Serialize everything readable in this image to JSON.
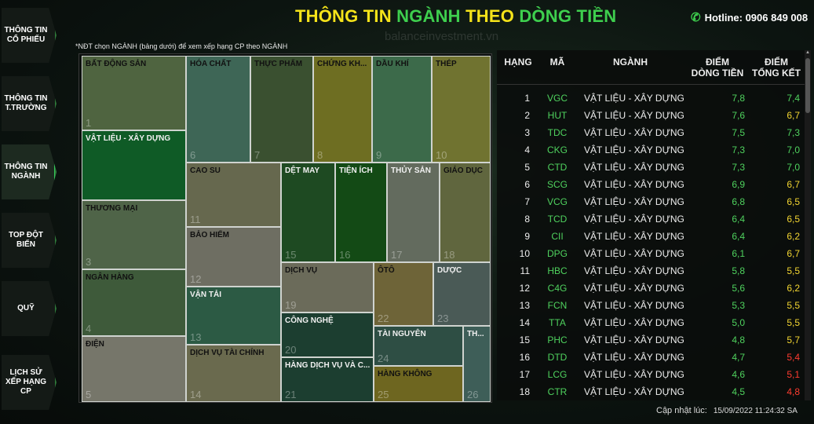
{
  "sidebar": {
    "items": [
      {
        "label": "THÔNG TIN CỔ PHIẾU"
      },
      {
        "label": "THÔNG TIN T.TRƯỜNG"
      },
      {
        "label": "THÔNG TIN NGÀNH"
      },
      {
        "label": "TOP ĐỘT BIẾN"
      },
      {
        "label": "QUỸ"
      },
      {
        "label": "LỊCH SỬ XẾP HẠNG CP"
      }
    ]
  },
  "header": {
    "title_p1": "THÔNG TIN ",
    "title_p2": "NGÀNH",
    "title_p3": " THEO ",
    "title_p4": "DÒNG TIỀN",
    "hotline": "Hotline: 0906 849 008",
    "watermark": "balanceinvestment.vn",
    "note": "*NĐT chọn NGÀNH (bảng dưới) để xem xếp hạng CP theo NGÀNH"
  },
  "treemap": {
    "tiles": [
      {
        "label": "BẤT ĐỘNG SẢN",
        "num": "1",
        "color": "#4f6440"
      },
      {
        "label": "VẬT LIỆU - XÂY DỰNG",
        "num": "",
        "color": "#0f5b26"
      },
      {
        "label": "THƯƠNG MẠI",
        "num": "3",
        "color": "#4f6448"
      },
      {
        "label": "NGÂN HÀNG",
        "num": "4",
        "color": "#3e5a3a"
      },
      {
        "label": "ĐIỆN",
        "num": "5",
        "color": "#76766a"
      },
      {
        "label": "HÓA CHẤT",
        "num": "6",
        "color": "#3e6656"
      },
      {
        "label": "THỰC PHẨM",
        "num": "7",
        "color": "#3a5030"
      },
      {
        "label": "CHỨNG KH...",
        "num": "8",
        "color": "#6e6e22"
      },
      {
        "label": "DẦU KHÍ",
        "num": "9",
        "color": "#3c6a4a"
      },
      {
        "label": "THÉP",
        "num": "10",
        "color": "#707330"
      },
      {
        "label": "CAO SU",
        "num": "11",
        "color": "#66684e"
      },
      {
        "label": "BẢO HIỂM",
        "num": "12",
        "color": "#6e6e62"
      },
      {
        "label": "VẬN TẢI",
        "num": "13",
        "color": "#2c5a44"
      },
      {
        "label": "DỊCH VỤ TÀI CHÍNH",
        "num": "14",
        "color": "#6a6a4e"
      },
      {
        "label": "DỆT MAY",
        "num": "15",
        "color": "#1e4a22"
      },
      {
        "label": "TIỆN ÍCH",
        "num": "16",
        "color": "#134a15"
      },
      {
        "label": "THỦY SẢN",
        "num": "17",
        "color": "#636b5e"
      },
      {
        "label": "GIÁO DỤC",
        "num": "18",
        "color": "#60663e"
      },
      {
        "label": "DỊCH VỤ",
        "num": "19",
        "color": "#6b6b5a"
      },
      {
        "label": "CÔNG NGHỆ",
        "num": "20",
        "color": "#1c3e30"
      },
      {
        "label": "HÀNG DỊCH VỤ VÀ C...",
        "num": "21",
        "color": "#1c3e30"
      },
      {
        "label": "ÔTÔ",
        "num": "22",
        "color": "#6e6438"
      },
      {
        "label": "DƯỢC",
        "num": "23",
        "color": "#4a5a56"
      },
      {
        "label": "TÀI NGUYÊN",
        "num": "24",
        "color": "#2e4e44"
      },
      {
        "label": "HÀNG KHÔNG",
        "num": "25",
        "color": "#6e6620"
      },
      {
        "label": "TH...",
        "num": "26",
        "color": "#3e5e58"
      }
    ]
  },
  "table": {
    "headers": {
      "rank": "HẠNG",
      "code": "MÃ",
      "industry": "NGÀNH",
      "score1_l1": "ĐIỂM",
      "score1_l2": "DÒNG TIỀN",
      "score2_l1": "ĐIỂM",
      "score2_l2": "TỔNG KẾT"
    },
    "rows": [
      {
        "rank": "1",
        "code": "VGC",
        "industry": "VẬT LIỆU - XÂY DỰNG",
        "s1": "7,8",
        "s2": "7,4",
        "s2_color": "#4fd25e"
      },
      {
        "rank": "2",
        "code": "HUT",
        "industry": "VẬT LIỆU - XÂY DỰNG",
        "s1": "7,6",
        "s2": "6,7",
        "s2_color": "#f2d531"
      },
      {
        "rank": "3",
        "code": "TDC",
        "industry": "VẬT LIỆU - XÂY DỰNG",
        "s1": "7,5",
        "s2": "7,3",
        "s2_color": "#4fd25e"
      },
      {
        "rank": "4",
        "code": "CKG",
        "industry": "VẬT LIỆU - XÂY DỰNG",
        "s1": "7,3",
        "s2": "7,0",
        "s2_color": "#4fd25e"
      },
      {
        "rank": "5",
        "code": "CTD",
        "industry": "VẬT LIỆU - XÂY DỰNG",
        "s1": "7,3",
        "s2": "7,0",
        "s2_color": "#4fd25e"
      },
      {
        "rank": "6",
        "code": "SCG",
        "industry": "VẬT LIỆU - XÂY DỰNG",
        "s1": "6,9",
        "s2": "6,7",
        "s2_color": "#f2d531"
      },
      {
        "rank": "7",
        "code": "VCG",
        "industry": "VẬT LIỆU - XÂY DỰNG",
        "s1": "6,8",
        "s2": "6,5",
        "s2_color": "#f2d531"
      },
      {
        "rank": "8",
        "code": "TCD",
        "industry": "VẬT LIỆU - XÂY DỰNG",
        "s1": "6,4",
        "s2": "6,5",
        "s2_color": "#f2d531"
      },
      {
        "rank": "9",
        "code": "CII",
        "industry": "VẬT LIỆU - XÂY DỰNG",
        "s1": "6,4",
        "s2": "6,2",
        "s2_color": "#f2d531"
      },
      {
        "rank": "10",
        "code": "DPG",
        "industry": "VẬT LIỆU - XÂY DỰNG",
        "s1": "6,1",
        "s2": "6,7",
        "s2_color": "#f2d531"
      },
      {
        "rank": "11",
        "code": "HBC",
        "industry": "VẬT LIỆU - XÂY DỰNG",
        "s1": "5,8",
        "s2": "5,5",
        "s2_color": "#f2d531"
      },
      {
        "rank": "12",
        "code": "C4G",
        "industry": "VẬT LIỆU - XÂY DỰNG",
        "s1": "5,6",
        "s2": "6,2",
        "s2_color": "#f2d531"
      },
      {
        "rank": "13",
        "code": "FCN",
        "industry": "VẬT LIỆU - XÂY DỰNG",
        "s1": "5,3",
        "s2": "5,5",
        "s2_color": "#f2d531"
      },
      {
        "rank": "14",
        "code": "TTA",
        "industry": "VẬT LIỆU - XÂY DỰNG",
        "s1": "5,0",
        "s2": "5,5",
        "s2_color": "#f2d531"
      },
      {
        "rank": "15",
        "code": "PHC",
        "industry": "VẬT LIỆU - XÂY DỰNG",
        "s1": "4,8",
        "s2": "5,7",
        "s2_color": "#f2d531"
      },
      {
        "rank": "16",
        "code": "DTD",
        "industry": "VẬT LIỆU - XÂY DỰNG",
        "s1": "4,7",
        "s2": "5,4",
        "s2_color": "#ff3b30"
      },
      {
        "rank": "17",
        "code": "LCG",
        "industry": "VẬT LIỆU - XÂY DỰNG",
        "s1": "4,6",
        "s2": "5,1",
        "s2_color": "#ff3b30"
      },
      {
        "rank": "18",
        "code": "CTR",
        "industry": "VẬT LIỆU - XÂY DỰNG",
        "s1": "4,5",
        "s2": "4,8",
        "s2_color": "#ff3b30"
      }
    ]
  },
  "footer": {
    "label": "Cập nhật lúc:",
    "time": "15/09/2022 11:24:32 SA"
  }
}
